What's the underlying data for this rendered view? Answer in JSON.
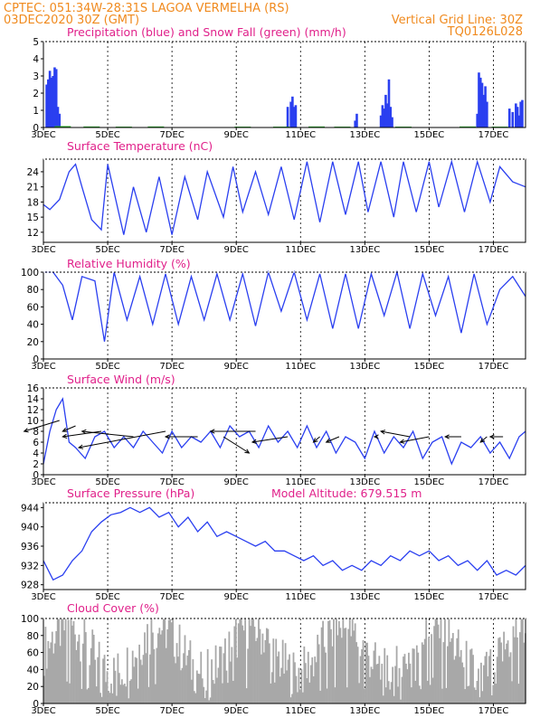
{
  "header": {
    "line1": "CPTEC:   051:34W-28:31S  LAGOA VERMELHA (RS)",
    "line2_left": "03DEC2020 30Z (GMT)",
    "line2_right": "Vertical Grid Line: 30Z",
    "line3_right": "TQ0126L028"
  },
  "colors": {
    "header": "#f08a1e",
    "title": "#e0208a",
    "line": "#2a3ff0",
    "snow": "#22aa22",
    "cloud": "#a8a8a8",
    "arrow": "#000000"
  },
  "x_axis": {
    "ticks": [
      {
        "day": 3,
        "label": "3DEC"
      },
      {
        "day": 5,
        "label": "5DEC"
      },
      {
        "day": 7,
        "label": "7DEC"
      },
      {
        "day": 9,
        "label": "9DEC"
      },
      {
        "day": 11,
        "label": "11DEC"
      },
      {
        "day": 13,
        "label": "13DEC"
      },
      {
        "day": 15,
        "label": "15DEC"
      },
      {
        "day": 17,
        "label": "17DEC"
      }
    ],
    "range": [
      3,
      18
    ]
  },
  "chart_data": [
    {
      "type": "bar",
      "title": "Precipitation (blue) and Snow Fall (green) (mm/h)",
      "ylim": [
        0,
        5
      ],
      "yticks": [
        0,
        1,
        2,
        3,
        4,
        5
      ],
      "series": [
        {
          "name": "Precipitation",
          "color": "#2a3ff0",
          "x": [
            3.1,
            3.15,
            3.2,
            3.25,
            3.3,
            3.35,
            3.4,
            3.45,
            3.5,
            10.6,
            10.7,
            10.75,
            10.8,
            10.85,
            12.7,
            12.75,
            13.5,
            13.55,
            13.6,
            13.65,
            13.7,
            13.75,
            13.8,
            13.85,
            16.5,
            16.55,
            16.6,
            16.65,
            16.7,
            16.75,
            16.8,
            17.5,
            17.6,
            17.7,
            17.75,
            17.8,
            17.85,
            17.9
          ],
          "values": [
            2.5,
            2.8,
            3.3,
            2.9,
            3.0,
            3.5,
            3.4,
            1.2,
            0.8,
            1.2,
            1.5,
            1.8,
            1.2,
            1.3,
            0.4,
            0.8,
            0.7,
            1.3,
            1.1,
            1.9,
            1.4,
            2.8,
            1.2,
            0.6,
            0.8,
            3.2,
            2.9,
            2.6,
            1.9,
            2.4,
            1.5,
            1.1,
            0.9,
            1.4,
            1.2,
            0.7,
            1.5,
            1.6
          ]
        },
        {
          "name": "Snow Fall",
          "color": "#22aa22",
          "x": [
            3.6,
            4.5,
            5.5,
            6.5,
            9.2,
            10.4,
            11.5,
            12.3,
            14.2,
            16.2,
            17.2
          ],
          "values": [
            0.08,
            0.06,
            0.05,
            0.06,
            0.05,
            0.05,
            0.06,
            0.05,
            0.05,
            0.06,
            0.05
          ]
        }
      ]
    },
    {
      "type": "line",
      "title": "Surface Temperature (nC)",
      "ylim": [
        10,
        26.5
      ],
      "yticks": [
        12,
        15,
        18,
        21,
        24
      ],
      "x": [
        3.0,
        3.2,
        3.5,
        3.8,
        4.0,
        4.2,
        4.5,
        4.8,
        5.0,
        5.5,
        5.8,
        6.2,
        6.6,
        7.0,
        7.4,
        7.8,
        8.1,
        8.6,
        8.9,
        9.2,
        9.6,
        10.0,
        10.4,
        10.8,
        11.2,
        11.6,
        12.0,
        12.4,
        12.8,
        13.1,
        13.5,
        13.9,
        14.2,
        14.6,
        15.0,
        15.3,
        15.7,
        16.1,
        16.5,
        16.9,
        17.2,
        17.6,
        18.0
      ],
      "values": [
        17.5,
        16.5,
        18.5,
        24,
        25.5,
        21,
        14.5,
        12.5,
        25.5,
        11.5,
        21,
        12,
        23,
        11.5,
        23,
        14.5,
        24,
        15,
        25,
        16,
        24,
        15.5,
        25,
        14.5,
        26,
        14,
        26,
        15.5,
        26,
        16,
        26,
        15,
        26,
        16,
        26,
        17,
        26,
        16,
        26,
        18,
        25,
        22,
        21
      ]
    },
    {
      "type": "line",
      "title": "Relative Humidity (%)",
      "ylim": [
        0,
        100
      ],
      "yticks": [
        0,
        20,
        40,
        60,
        80,
        100
      ],
      "x": [
        3.0,
        3.3,
        3.6,
        3.9,
        4.2,
        4.6,
        4.9,
        5.2,
        5.6,
        6.0,
        6.4,
        6.8,
        7.2,
        7.6,
        8.0,
        8.4,
        8.8,
        9.2,
        9.6,
        10.0,
        10.4,
        10.8,
        11.2,
        11.6,
        12.0,
        12.4,
        12.8,
        13.2,
        13.6,
        14.0,
        14.4,
        14.8,
        15.2,
        15.6,
        16.0,
        16.4,
        16.8,
        17.2,
        17.6,
        18.0
      ],
      "values": [
        100,
        100,
        85,
        45,
        95,
        90,
        20,
        100,
        45,
        95,
        40,
        98,
        40,
        95,
        45,
        98,
        45,
        98,
        38,
        100,
        55,
        100,
        45,
        98,
        35,
        98,
        35,
        98,
        50,
        100,
        35,
        98,
        50,
        95,
        30,
        98,
        40,
        80,
        95,
        72
      ]
    },
    {
      "type": "line",
      "title": "Surface Wind (m/s)",
      "ylim": [
        0,
        16
      ],
      "yticks": [
        0,
        2,
        4,
        6,
        8,
        10,
        12,
        14,
        16
      ],
      "x": [
        3.0,
        3.2,
        3.4,
        3.6,
        3.8,
        4.0,
        4.3,
        4.6,
        4.9,
        5.2,
        5.5,
        5.8,
        6.1,
        6.4,
        6.7,
        7.0,
        7.3,
        7.6,
        7.9,
        8.2,
        8.5,
        8.8,
        9.1,
        9.4,
        9.7,
        10.0,
        10.3,
        10.6,
        10.9,
        11.2,
        11.5,
        11.8,
        12.1,
        12.4,
        12.7,
        13.0,
        13.3,
        13.6,
        13.9,
        14.2,
        14.5,
        14.8,
        15.1,
        15.4,
        15.7,
        16.0,
        16.3,
        16.6,
        16.9,
        17.2,
        17.5,
        17.8,
        18.0
      ],
      "values": [
        2,
        8,
        12,
        14,
        6,
        5,
        3,
        7,
        8,
        5,
        7,
        5,
        8,
        6,
        4,
        8,
        5,
        7,
        6,
        8,
        5,
        9,
        7,
        8,
        5,
        9,
        6,
        8,
        5,
        9,
        5,
        8,
        4,
        7,
        6,
        3,
        8,
        4,
        7,
        5,
        8,
        3,
        6,
        7,
        2,
        6,
        5,
        7,
        4,
        6,
        3,
        7,
        8
      ],
      "vectors": [
        {
          "x": 3.5,
          "y": 10,
          "dx": 2.4,
          "dy": 8
        },
        {
          "x": 4.0,
          "y": 9,
          "dx": 3.6,
          "dy": 8
        },
        {
          "x": 4.8,
          "y": 8,
          "dx": 3.6,
          "dy": 7
        },
        {
          "x": 5.8,
          "y": 7,
          "dx": 4.2,
          "dy": 8
        },
        {
          "x": 6.8,
          "y": 8,
          "dx": 4.1,
          "dy": 5
        },
        {
          "x": 7.8,
          "y": 7,
          "dx": 6.8,
          "dy": 7
        },
        {
          "x": 8.6,
          "y": 7,
          "dx": 9.4,
          "dy": 4
        },
        {
          "x": 9.6,
          "y": 8,
          "dx": 8.2,
          "dy": 8
        },
        {
          "x": 10.6,
          "y": 7,
          "dx": 9.5,
          "dy": 6
        },
        {
          "x": 11.6,
          "y": 7,
          "dx": 11.4,
          "dy": 6
        },
        {
          "x": 12.2,
          "y": 7,
          "dx": 11.8,
          "dy": 6
        },
        {
          "x": 13.4,
          "y": 7,
          "dx": 13.3,
          "dy": 7
        },
        {
          "x": 14.4,
          "y": 7,
          "dx": 13.5,
          "dy": 8
        },
        {
          "x": 15.0,
          "y": 7,
          "dx": 14.1,
          "dy": 6
        },
        {
          "x": 16.0,
          "y": 7,
          "dx": 15.5,
          "dy": 7
        },
        {
          "x": 16.8,
          "y": 7,
          "dx": 16.6,
          "dy": 6
        },
        {
          "x": 17.3,
          "y": 7,
          "dx": 16.9,
          "dy": 7
        }
      ]
    },
    {
      "type": "line",
      "title": "Surface Pressure (hPa)",
      "annotation": "Model Altitude: 679.515  m",
      "ylim": [
        927,
        945
      ],
      "yticks": [
        928,
        932,
        936,
        940,
        944
      ],
      "x": [
        3.0,
        3.3,
        3.6,
        3.9,
        4.2,
        4.5,
        4.8,
        5.1,
        5.4,
        5.7,
        6.0,
        6.3,
        6.6,
        6.9,
        7.2,
        7.5,
        7.8,
        8.1,
        8.4,
        8.7,
        9.0,
        9.3,
        9.6,
        9.9,
        10.2,
        10.5,
        10.8,
        11.1,
        11.4,
        11.7,
        12.0,
        12.3,
        12.6,
        12.9,
        13.2,
        13.5,
        13.8,
        14.1,
        14.4,
        14.7,
        15.0,
        15.3,
        15.6,
        15.9,
        16.2,
        16.5,
        16.8,
        17.1,
        17.4,
        17.7,
        18.0
      ],
      "values": [
        933,
        929,
        930,
        933,
        935,
        939,
        941,
        942.5,
        943,
        944,
        943,
        944,
        942,
        943,
        940,
        942,
        939,
        941,
        938,
        939,
        938,
        937,
        936,
        937,
        935,
        935,
        934,
        933,
        934,
        932,
        933,
        931,
        932,
        931,
        933,
        932,
        934,
        933,
        935,
        934,
        935,
        933,
        934,
        932,
        933,
        931,
        933,
        930,
        931,
        930,
        932
      ]
    },
    {
      "type": "bar",
      "title": "Cloud Cover (%)",
      "ylim": [
        0,
        100
      ],
      "yticks": [
        0,
        20,
        40,
        60,
        80,
        100
      ],
      "step": 0.0417
    }
  ]
}
